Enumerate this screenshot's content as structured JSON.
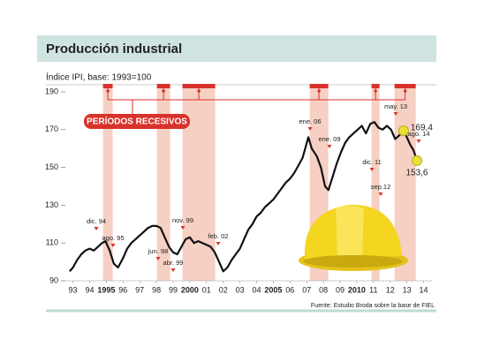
{
  "chart_data": {
    "type": "line",
    "title": "Producción industrial",
    "subtitle": "Índice IPI, base: 1993=100",
    "source": "Fuente: Estudio Broda sobre la base de FIEL",
    "recession_label": "PERÍODOS RECESIVOS",
    "recessions": [
      [
        1994.8,
        1995.38
      ],
      [
        1998.03,
        1998.82
      ],
      [
        1999.56,
        2001.52
      ],
      [
        2007.18,
        2008.29
      ],
      [
        2010.88,
        2011.36
      ],
      [
        2012.26,
        2013.53
      ]
    ],
    "xlim": [
      1992.6,
      2014.5
    ],
    "xticks": [
      {
        "value": 1993,
        "label": "93"
      },
      {
        "value": 1994,
        "label": "94"
      },
      1995,
      {
        "value": 1996,
        "label": "96"
      },
      {
        "value": 1997,
        "label": "97"
      },
      {
        "value": 1998,
        "label": "98"
      },
      {
        "value": 1999,
        "label": "99"
      },
      2000,
      {
        "value": 2001,
        "label": "01"
      },
      {
        "value": 2002,
        "label": "02"
      },
      {
        "value": 2003,
        "label": "03"
      },
      {
        "value": 2004,
        "label": "04"
      },
      2005,
      {
        "value": 2006,
        "label": "06"
      },
      {
        "value": 2007,
        "label": "07"
      },
      {
        "value": 2008,
        "label": "08"
      },
      {
        "value": 2009,
        "label": "09"
      },
      2010,
      {
        "value": 2011,
        "label": "11"
      },
      {
        "value": 2012,
        "label": "12"
      },
      {
        "value": 2013,
        "label": "13"
      },
      {
        "value": 2014,
        "label": "14"
      }
    ],
    "ylim": [
      90,
      190
    ],
    "yticks": [
      90,
      110,
      130,
      150,
      170,
      190
    ],
    "color": "#111111",
    "x": [
      1992.8,
      1993.0,
      1993.25,
      1993.5,
      1993.75,
      1994.0,
      1994.25,
      1994.5,
      1994.75,
      1994.95,
      1995.2,
      1995.45,
      1995.7,
      1996.0,
      1996.25,
      1996.5,
      1996.75,
      1997.0,
      1997.25,
      1997.5,
      1997.75,
      1998.0,
      1998.25,
      1998.5,
      1998.75,
      1999.0,
      1999.25,
      1999.5,
      1999.75,
      2000.0,
      2000.25,
      2000.5,
      2000.75,
      2001.0,
      2001.25,
      2001.5,
      2001.75,
      2002.0,
      2002.25,
      2002.5,
      2002.75,
      2003.0,
      2003.25,
      2003.5,
      2003.75,
      2004.0,
      2004.25,
      2004.5,
      2004.75,
      2005.0,
      2005.25,
      2005.5,
      2005.75,
      2006.0,
      2006.25,
      2006.5,
      2006.75,
      2007.1,
      2007.3,
      2007.6,
      2007.85,
      2008.1,
      2008.3,
      2008.55,
      2008.8,
      2009.05,
      2009.3,
      2009.55,
      2009.8,
      2010.05,
      2010.3,
      2010.55,
      2010.8,
      2011.05,
      2011.3,
      2011.55,
      2011.8,
      2012.05,
      2012.3,
      2012.55,
      2012.8,
      2013.0,
      2013.2,
      2013.4,
      2013.6
    ],
    "values": [
      95,
      97,
      101,
      104,
      106,
      107,
      106,
      108,
      110,
      111,
      106,
      99,
      97,
      102,
      107,
      110,
      112,
      114,
      116,
      118,
      119,
      119,
      118,
      113,
      108,
      105,
      104,
      108,
      112,
      113,
      110,
      111,
      110,
      109,
      108,
      105,
      100,
      95,
      97,
      101,
      104,
      107,
      112,
      117,
      120,
      124,
      126,
      129,
      131,
      133,
      136,
      139,
      142,
      144,
      147,
      151,
      155,
      166,
      160,
      156,
      150,
      140,
      138,
      145,
      152,
      158,
      163,
      166,
      168,
      170,
      172,
      168,
      173,
      174,
      171,
      170,
      172,
      170,
      165,
      167,
      169.4,
      166,
      162,
      159,
      153.6
    ],
    "annotations": [
      "dic. 94",
      "ago. 95",
      "jun. 98",
      "abr. 99",
      "nov. 99",
      "feb. 02",
      "ene. 06",
      "ene. 09",
      "dic. 11",
      "sep.12",
      "may. 13",
      "ago. 14"
    ],
    "highlights": [
      {
        "x": 2012.8,
        "value": 169.4,
        "label": "169,4"
      },
      {
        "x": 2013.6,
        "value": 153.6,
        "label": "153,6"
      }
    ]
  }
}
